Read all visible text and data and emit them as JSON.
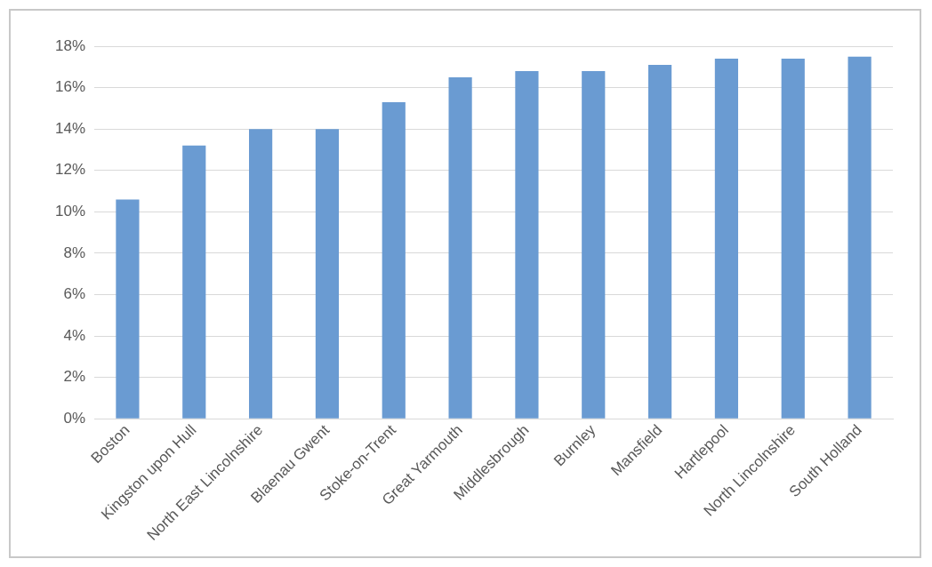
{
  "chart_data": {
    "type": "bar",
    "categories": [
      "Boston",
      "Kingston upon Hull",
      "North East Lincolnshire",
      "Blaenau Gwent",
      "Stoke-on-Trent",
      "Great Yarmouth",
      "Middlesbrough",
      "Burnley",
      "Mansfield",
      "Hartlepool",
      "North Lincolnshire",
      "South Holland"
    ],
    "values": [
      10.6,
      13.2,
      14.0,
      14.0,
      15.3,
      16.5,
      16.8,
      16.8,
      17.1,
      17.4,
      17.4,
      17.5
    ],
    "color": "#6a9bd2",
    "ylim": [
      0,
      18
    ],
    "yticks": [
      {
        "value": 0,
        "label": "0%"
      },
      {
        "value": 2,
        "label": "2%"
      },
      {
        "value": 4,
        "label": "4%"
      },
      {
        "value": 6,
        "label": "6%"
      },
      {
        "value": 8,
        "label": "8%"
      },
      {
        "value": 10,
        "label": "10%"
      },
      {
        "value": 12,
        "label": "12%"
      },
      {
        "value": 14,
        "label": "14%"
      },
      {
        "value": 16,
        "label": "16%"
      },
      {
        "value": 18,
        "label": "18%"
      }
    ],
    "grid": "y",
    "legend": false
  }
}
